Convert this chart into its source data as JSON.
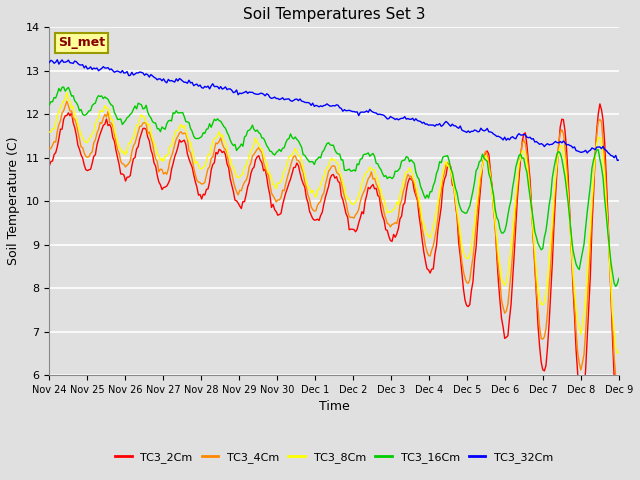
{
  "title": "Soil Temperatures Set 3",
  "xlabel": "Time",
  "ylabel": "Soil Temperature (C)",
  "ylim": [
    6.0,
    14.0
  ],
  "yticks": [
    6.0,
    7.0,
    8.0,
    9.0,
    10.0,
    11.0,
    12.0,
    13.0,
    14.0
  ],
  "xtick_labels": [
    "Nov 24",
    "Nov 25",
    "Nov 26",
    "Nov 27",
    "Nov 28",
    "Nov 29",
    "Nov 30",
    "Dec 1",
    "Dec 2",
    "Dec 3",
    "Dec 4",
    "Dec 5",
    "Dec 6",
    "Dec 7",
    "Dec 8",
    "Dec 9"
  ],
  "series_colors": [
    "#ff0000",
    "#ff8800",
    "#ffff00",
    "#00cc00",
    "#0000ff"
  ],
  "series_names": [
    "TC3_2Cm",
    "TC3_4Cm",
    "TC3_8Cm",
    "TC3_16Cm",
    "TC3_32Cm"
  ],
  "bg_color": "#e0e0e0",
  "plot_bg_color": "#e0e0e0",
  "annotation_text": "SI_met",
  "annotation_bg": "#ffff99",
  "annotation_border": "#999900",
  "annotation_text_color": "#880000",
  "grid_color": "#ffffff",
  "n_points": 360,
  "figsize": [
    6.4,
    4.8
  ],
  "dpi": 100
}
